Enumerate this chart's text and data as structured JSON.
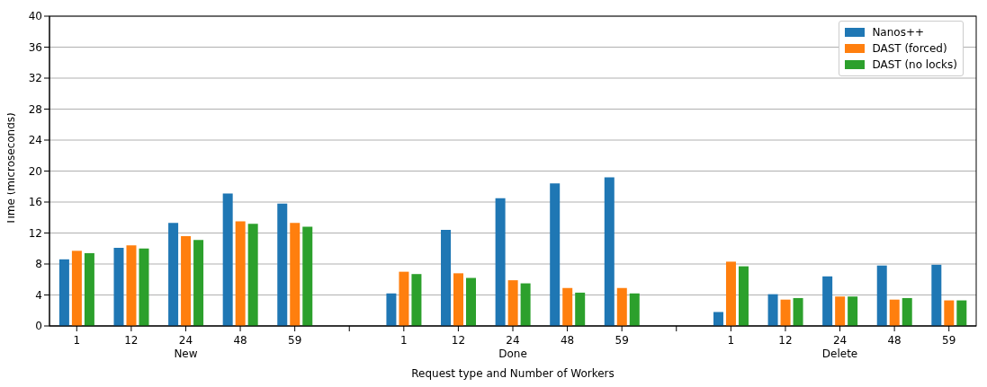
{
  "chart_data": {
    "type": "bar",
    "xlabel": "Request type and Number of Workers",
    "ylabel": "Time (microseconds)",
    "categories": [
      "1",
      "12",
      "24",
      "48",
      "59",
      null,
      "1",
      "12",
      "24",
      "48",
      "59",
      null,
      "1",
      "12",
      "24",
      "48",
      "59"
    ],
    "series": [
      {
        "name": "Nanos++",
        "color": "#1f77b4",
        "values": [
          8.6,
          10.1,
          13.3,
          17.1,
          15.8,
          null,
          4.2,
          12.4,
          16.5,
          18.4,
          19.2,
          null,
          1.8,
          4.1,
          6.4,
          7.8,
          7.9
        ]
      },
      {
        "name": "DAST (forced)",
        "color": "#ff7f0e",
        "values": [
          9.7,
          10.4,
          11.6,
          13.5,
          13.3,
          null,
          7.0,
          6.8,
          5.9,
          4.9,
          4.9,
          null,
          8.3,
          3.4,
          3.8,
          3.4,
          3.3
        ]
      },
      {
        "name": "DAST (no locks)",
        "color": "#2ca02c",
        "values": [
          9.4,
          10.0,
          11.1,
          13.2,
          12.8,
          null,
          6.7,
          6.2,
          5.5,
          4.3,
          4.2,
          null,
          7.7,
          3.6,
          3.8,
          3.6,
          3.3
        ]
      }
    ],
    "annotations": [
      "New",
      "Done",
      "Delete"
    ],
    "ylim": [
      0,
      40
    ],
    "yticks": [
      0,
      4,
      8,
      12,
      16,
      20,
      24,
      28,
      32,
      36,
      40
    ],
    "grid": "y",
    "legend": "top right"
  }
}
